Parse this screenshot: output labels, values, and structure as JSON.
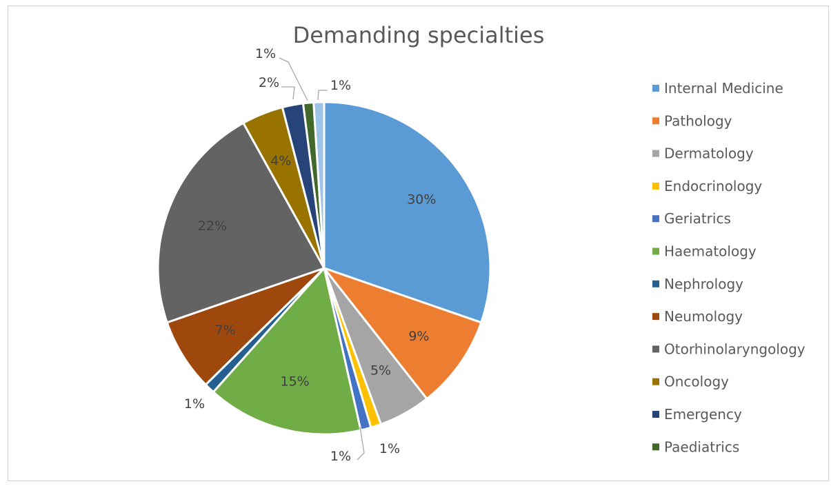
{
  "chart_data": {
    "type": "pie",
    "title": "Demanding specialties",
    "legend_position": "right",
    "slices": [
      {
        "name": "Internal Medicine",
        "value": 30,
        "label": "30%",
        "color": "#5B9BD5"
      },
      {
        "name": "Pathology",
        "value": 9,
        "label": "9%",
        "color": "#ED7D31"
      },
      {
        "name": "Dermatology",
        "value": 5,
        "label": "5%",
        "color": "#A5A5A5"
      },
      {
        "name": "Endocrinology",
        "value": 1,
        "label": "1%",
        "color": "#FFC000"
      },
      {
        "name": "Geriatrics",
        "value": 1,
        "label": "1%",
        "color": "#4472C4"
      },
      {
        "name": "Haematology",
        "value": 15,
        "label": "15%",
        "color": "#70AD47"
      },
      {
        "name": "Nephrology",
        "value": 1,
        "label": "1%",
        "color": "#255E91"
      },
      {
        "name": "Neumology",
        "value": 7,
        "label": "7%",
        "color": "#9E480E"
      },
      {
        "name": "Otorhinolaryngology",
        "value": 22,
        "label": "22%",
        "color": "#636363"
      },
      {
        "name": "Oncology",
        "value": 4,
        "label": "4%",
        "color": "#997300"
      },
      {
        "name": "Emergency",
        "value": 2,
        "label": "2%",
        "color": "#264478"
      },
      {
        "name": "Paediatrics",
        "value": 1,
        "label": "1%",
        "color": "#43682B"
      },
      {
        "name": "Internal Medicine",
        "value": 1,
        "label": "1%",
        "color": "#9DC3E6",
        "in_legend": false
      }
    ]
  }
}
